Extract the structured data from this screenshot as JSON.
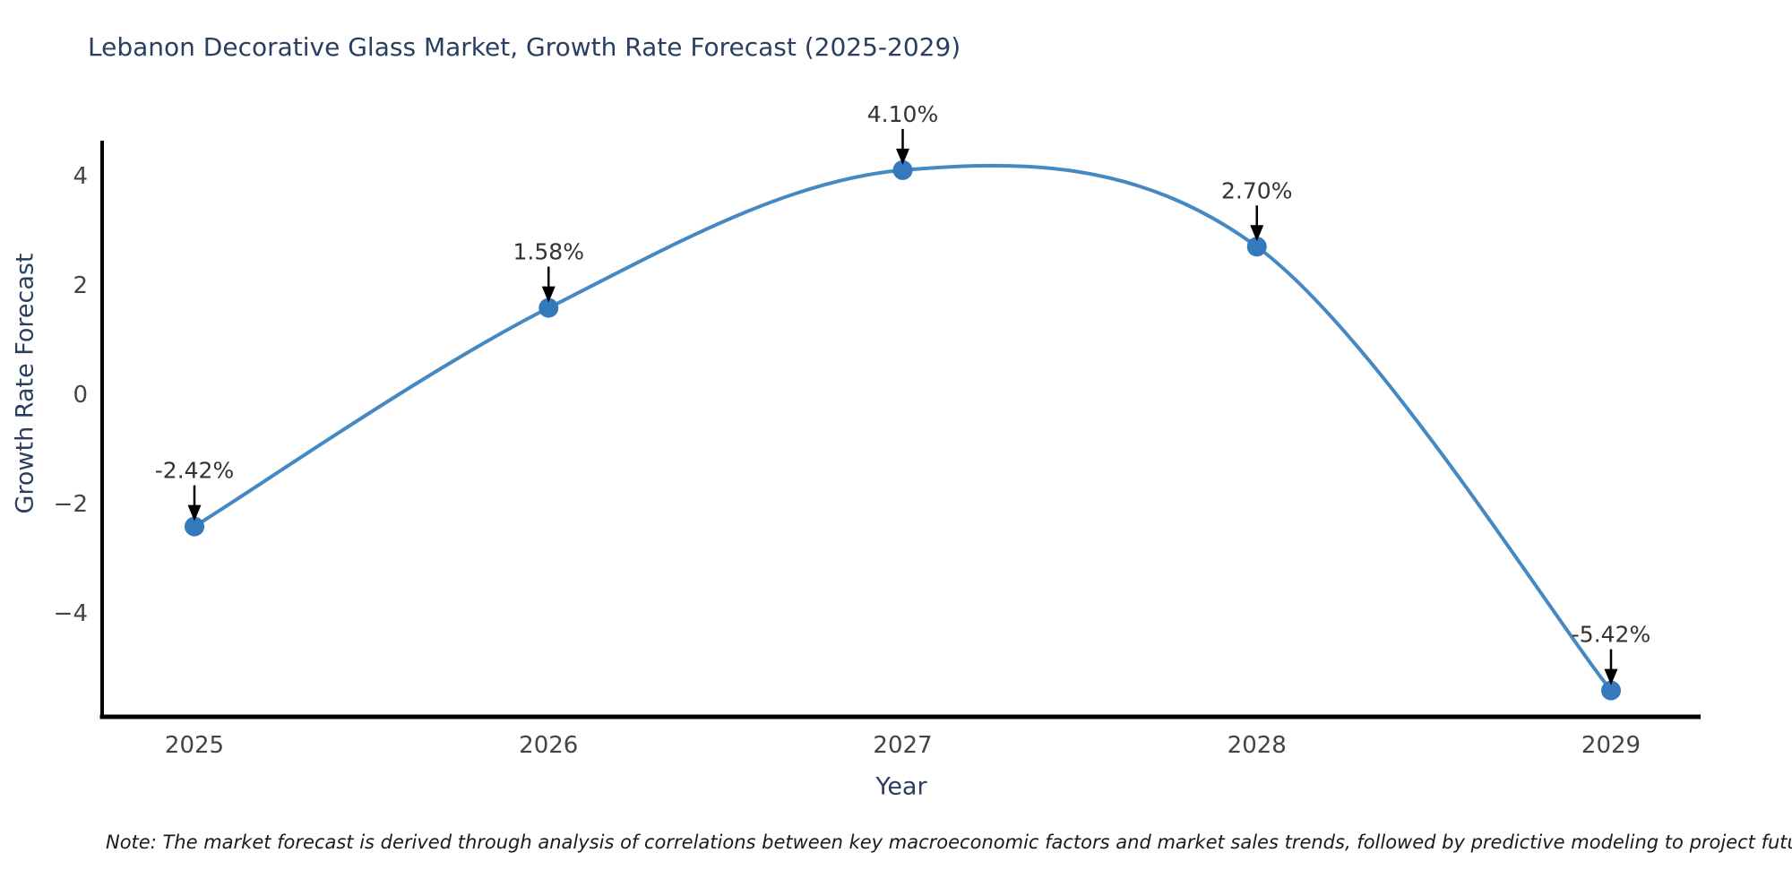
{
  "chart_data": {
    "type": "line",
    "title": "Lebanon Decorative Glass Market, Growth Rate Forecast (2025-2029)",
    "xlabel": "Year",
    "ylabel": "Growth Rate Forecast",
    "categories": [
      "2025",
      "2026",
      "2027",
      "2028",
      "2029"
    ],
    "series": [
      {
        "name": "Growth Rate Forecast",
        "values": [
          -2.42,
          1.58,
          4.1,
          2.7,
          -5.42
        ]
      }
    ],
    "point_labels": [
      "-2.42%",
      "1.58%",
      "4.10%",
      "2.70%",
      "-5.42%"
    ],
    "yticks": [
      4,
      2,
      0,
      -2,
      -4
    ],
    "ytick_labels": [
      "4",
      "2",
      "0",
      "−2",
      "−4"
    ],
    "ylim": [
      -5.9,
      4.6
    ],
    "line_shape": "spline",
    "marker": "circle",
    "grid": false,
    "legend": "none",
    "annotation_arrows": true,
    "colors": {
      "line": "#4588c2",
      "marker": "#3379bb",
      "title": "#2a3f5f",
      "axis_label": "#2a3f5f",
      "tick": "#444444",
      "annotation_text": "#333333",
      "annotation_arrow": "#000000",
      "axis_line": "#000000",
      "background": "#ffffff"
    }
  },
  "note": {
    "text": "Note: The market forecast is derived through analysis of correlations between key macroeconomic factors and market sales trends, followed by predictive modeling to project future sales"
  }
}
